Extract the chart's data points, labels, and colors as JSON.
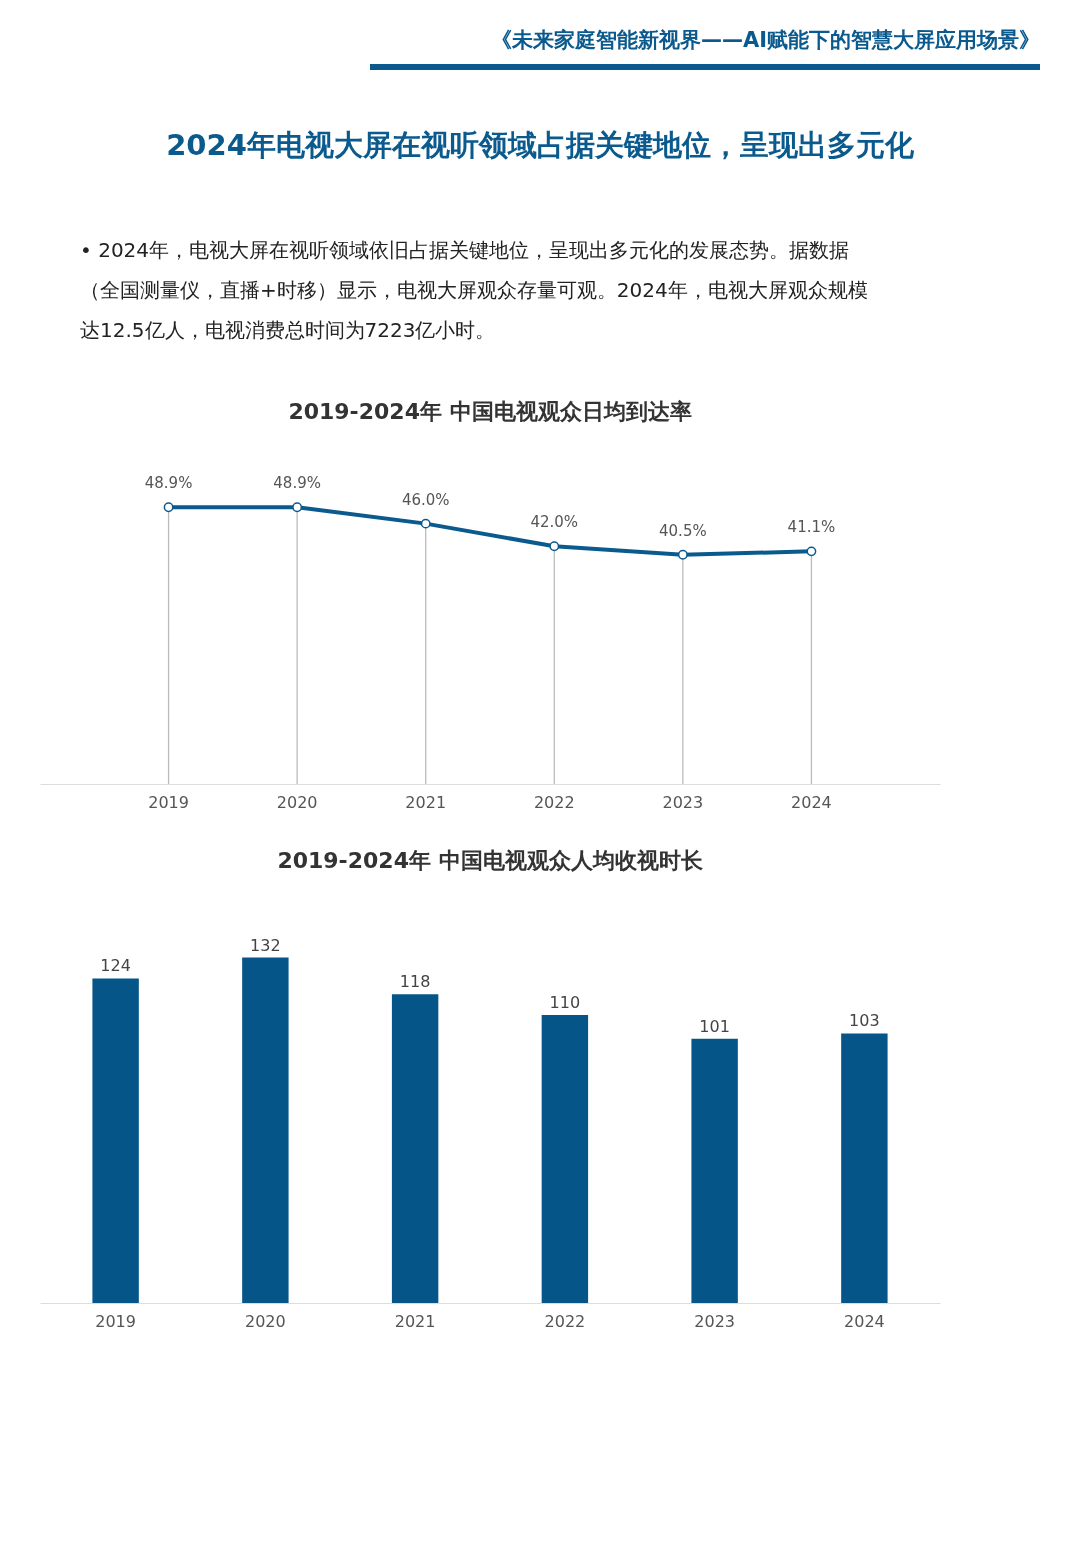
{
  "chart_data": [
    {
      "type": "line",
      "title": "2019-2024年  中国电视观众日均到达率",
      "annotations": [
        "《未来家庭智能新视界——AI赋能下的智慧大屏应用场景》",
        "2024年电视大屏在视听领域占据关键地位，呈现出多元化",
        "• 2024年，电视大屏在视听领域依旧占据关键地位，呈现出多元化的发展态势。据数据（全国测量仪，直播+时移）显示，电视大屏观众存量可观。2024年，电视大屏观众规模达12.5亿人，电视消费总时间为7223亿小时。"
      ],
      "categories": [
        "2019",
        "2020",
        "2021",
        "2022",
        "2023",
        "2024"
      ],
      "series": [
        {
          "color": "#0b5a8e",
          "values": [
            48.9,
            48.9,
            46.0,
            42.0,
            40.5,
            41.1
          ],
          "value_labels": [
            "48.9%",
            "48.9%",
            "46.0%",
            "42.0%",
            "40.5%",
            "41.1%"
          ]
        }
      ],
      "marker": "circle",
      "line_style": "solid",
      "grid": "x"
    },
    {
      "type": "bar",
      "title": "2019-2024年  中国电视观众人均收视时长",
      "categories": [
        "2019",
        "2020",
        "2021",
        "2022",
        "2023",
        "2024"
      ],
      "series": [
        {
          "color": "#065589",
          "values": [
            124,
            132,
            118,
            110,
            101,
            103
          ]
        }
      ],
      "data_labels": true
    }
  ]
}
